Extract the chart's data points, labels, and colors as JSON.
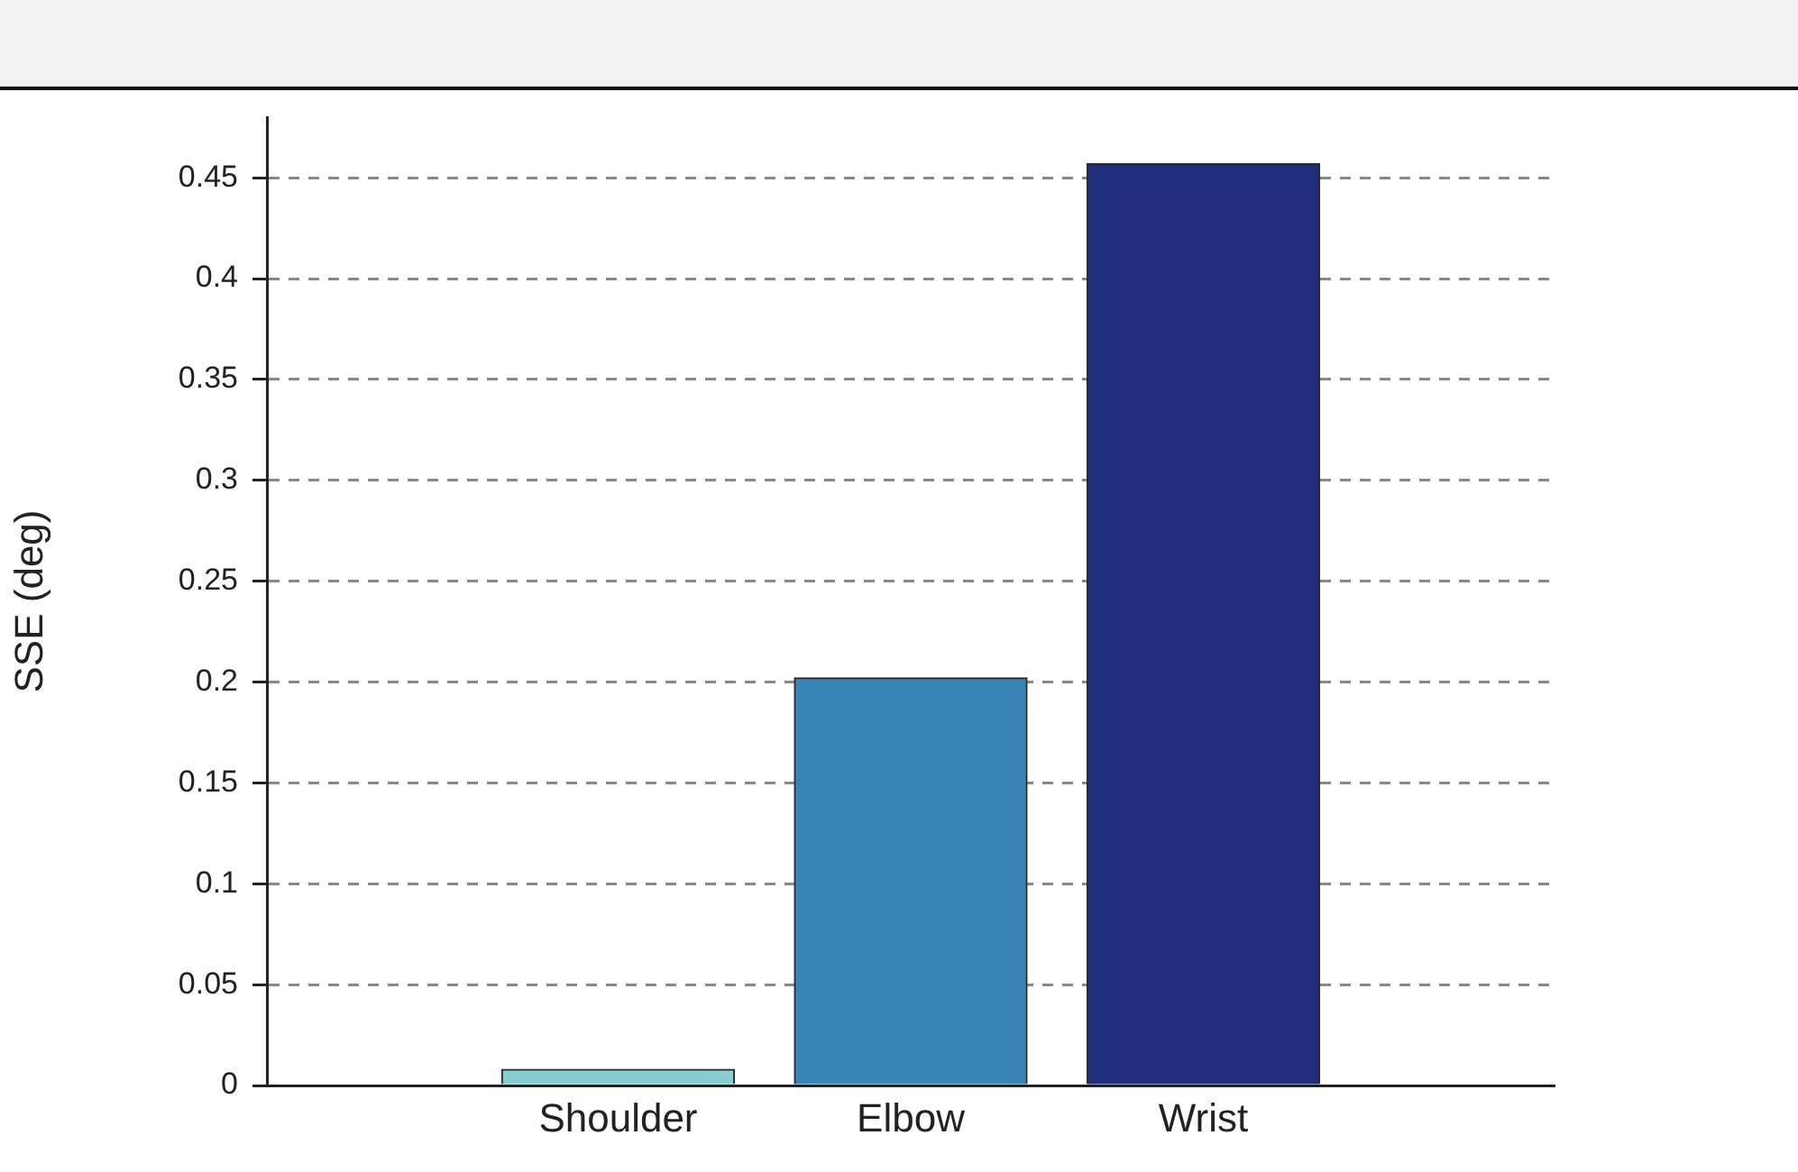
{
  "chart_data": {
    "type": "bar",
    "ylabel": "SSE (deg)",
    "categories": [
      "Shoulder",
      "Elbow",
      "Wrist"
    ],
    "values": [
      0.008,
      0.202,
      0.457
    ],
    "colors": [
      "#88cdd0",
      "#3a85b8",
      "#1e2d7c"
    ],
    "ylim": [
      0,
      0.48
    ],
    "yticks": [
      0,
      0.05,
      0.1,
      0.15,
      0.2,
      0.25,
      0.3,
      0.35,
      0.4,
      0.45
    ],
    "grid": "y"
  }
}
